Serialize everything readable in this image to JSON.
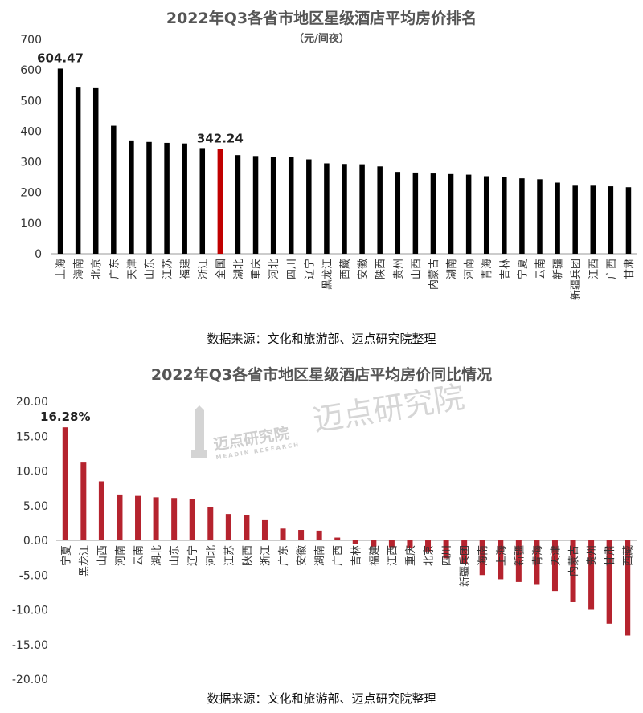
{
  "chart_data": [
    {
      "type": "bar",
      "title": "2022年Q3各省市地区星级酒店平均房价排名",
      "subtitle": "（元/间夜）",
      "categories": [
        "上海",
        "海南",
        "北京",
        "广东",
        "天津",
        "山东",
        "江苏",
        "福建",
        "浙江",
        "全国",
        "湖北",
        "重庆",
        "河北",
        "四川",
        "辽宁",
        "黑龙江",
        "西藏",
        "安徽",
        "陕西",
        "贵州",
        "山西",
        "内蒙古",
        "湖南",
        "河南",
        "青海",
        "吉林",
        "宁夏",
        "云南",
        "新疆",
        "新疆兵团",
        "江西",
        "广西",
        "甘肃"
      ],
      "values": [
        604.47,
        545,
        543,
        418,
        370,
        365,
        362,
        360,
        345,
        342.24,
        322,
        319,
        317,
        317,
        308,
        295,
        293,
        292,
        285,
        267,
        265,
        262,
        260,
        258,
        253,
        250,
        246,
        243,
        232,
        222,
        222,
        220,
        217
      ],
      "highlight": "全国",
      "highlight_color": "#c00000",
      "bar_color": "#000000",
      "data_labels": [
        {
          "category": "上海",
          "text": "604.47"
        },
        {
          "category": "全国",
          "text": "342.24"
        }
      ],
      "yticks": [
        "0",
        "100",
        "200",
        "300",
        "400",
        "500",
        "600",
        "700"
      ],
      "ylim": [
        0,
        700
      ],
      "xlabel": "",
      "ylabel": "",
      "grid": false
    },
    {
      "type": "bar",
      "title": "2022年Q3各省市地区星级酒店平均房价同比情况",
      "categories": [
        "宁夏",
        "黑龙江",
        "山西",
        "河南",
        "云南",
        "湖北",
        "山东",
        "辽宁",
        "河北",
        "江苏",
        "陕西",
        "浙江",
        "广东",
        "安徽",
        "湖南",
        "广西",
        "吉林",
        "福建",
        "江西",
        "重庆",
        "北京",
        "四川",
        "新疆兵团",
        "海南",
        "上海",
        "新疆",
        "青海",
        "天津",
        "内蒙古",
        "贵州",
        "甘肃",
        "西藏"
      ],
      "values": [
        16.28,
        11.2,
        8.5,
        6.6,
        6.4,
        6.2,
        6.1,
        5.9,
        4.8,
        3.8,
        3.6,
        2.9,
        1.7,
        1.5,
        1.4,
        0.4,
        -0.5,
        -0.9,
        -1.0,
        -1.1,
        -1.6,
        -2.6,
        -3.4,
        -5.0,
        -5.6,
        -6.0,
        -6.3,
        -7.3,
        -8.9,
        -10.0,
        -12.0,
        -13.7
      ],
      "bar_color": "#b5232e",
      "data_labels": [
        {
          "category": "宁夏",
          "text": "16.28%"
        }
      ],
      "yticks": [
        "-20.00",
        "-15.00",
        "-10.00",
        "-5.00",
        "0.00",
        "5.00",
        "10.00",
        "15.00",
        "20.00"
      ],
      "ylim": [
        -20,
        20
      ],
      "xlabel": "",
      "ylabel": "",
      "grid": false
    }
  ],
  "sources": {
    "top": "数据来源：文化和旅游部、迈点研究院整理",
    "bottom": "数据来源：文化和旅游部、迈点研究院整理"
  },
  "watermark": {
    "logo_text": "迈点研究院",
    "big_text": "迈点研究院",
    "sub_text": "MEADIN RESEARCH"
  }
}
